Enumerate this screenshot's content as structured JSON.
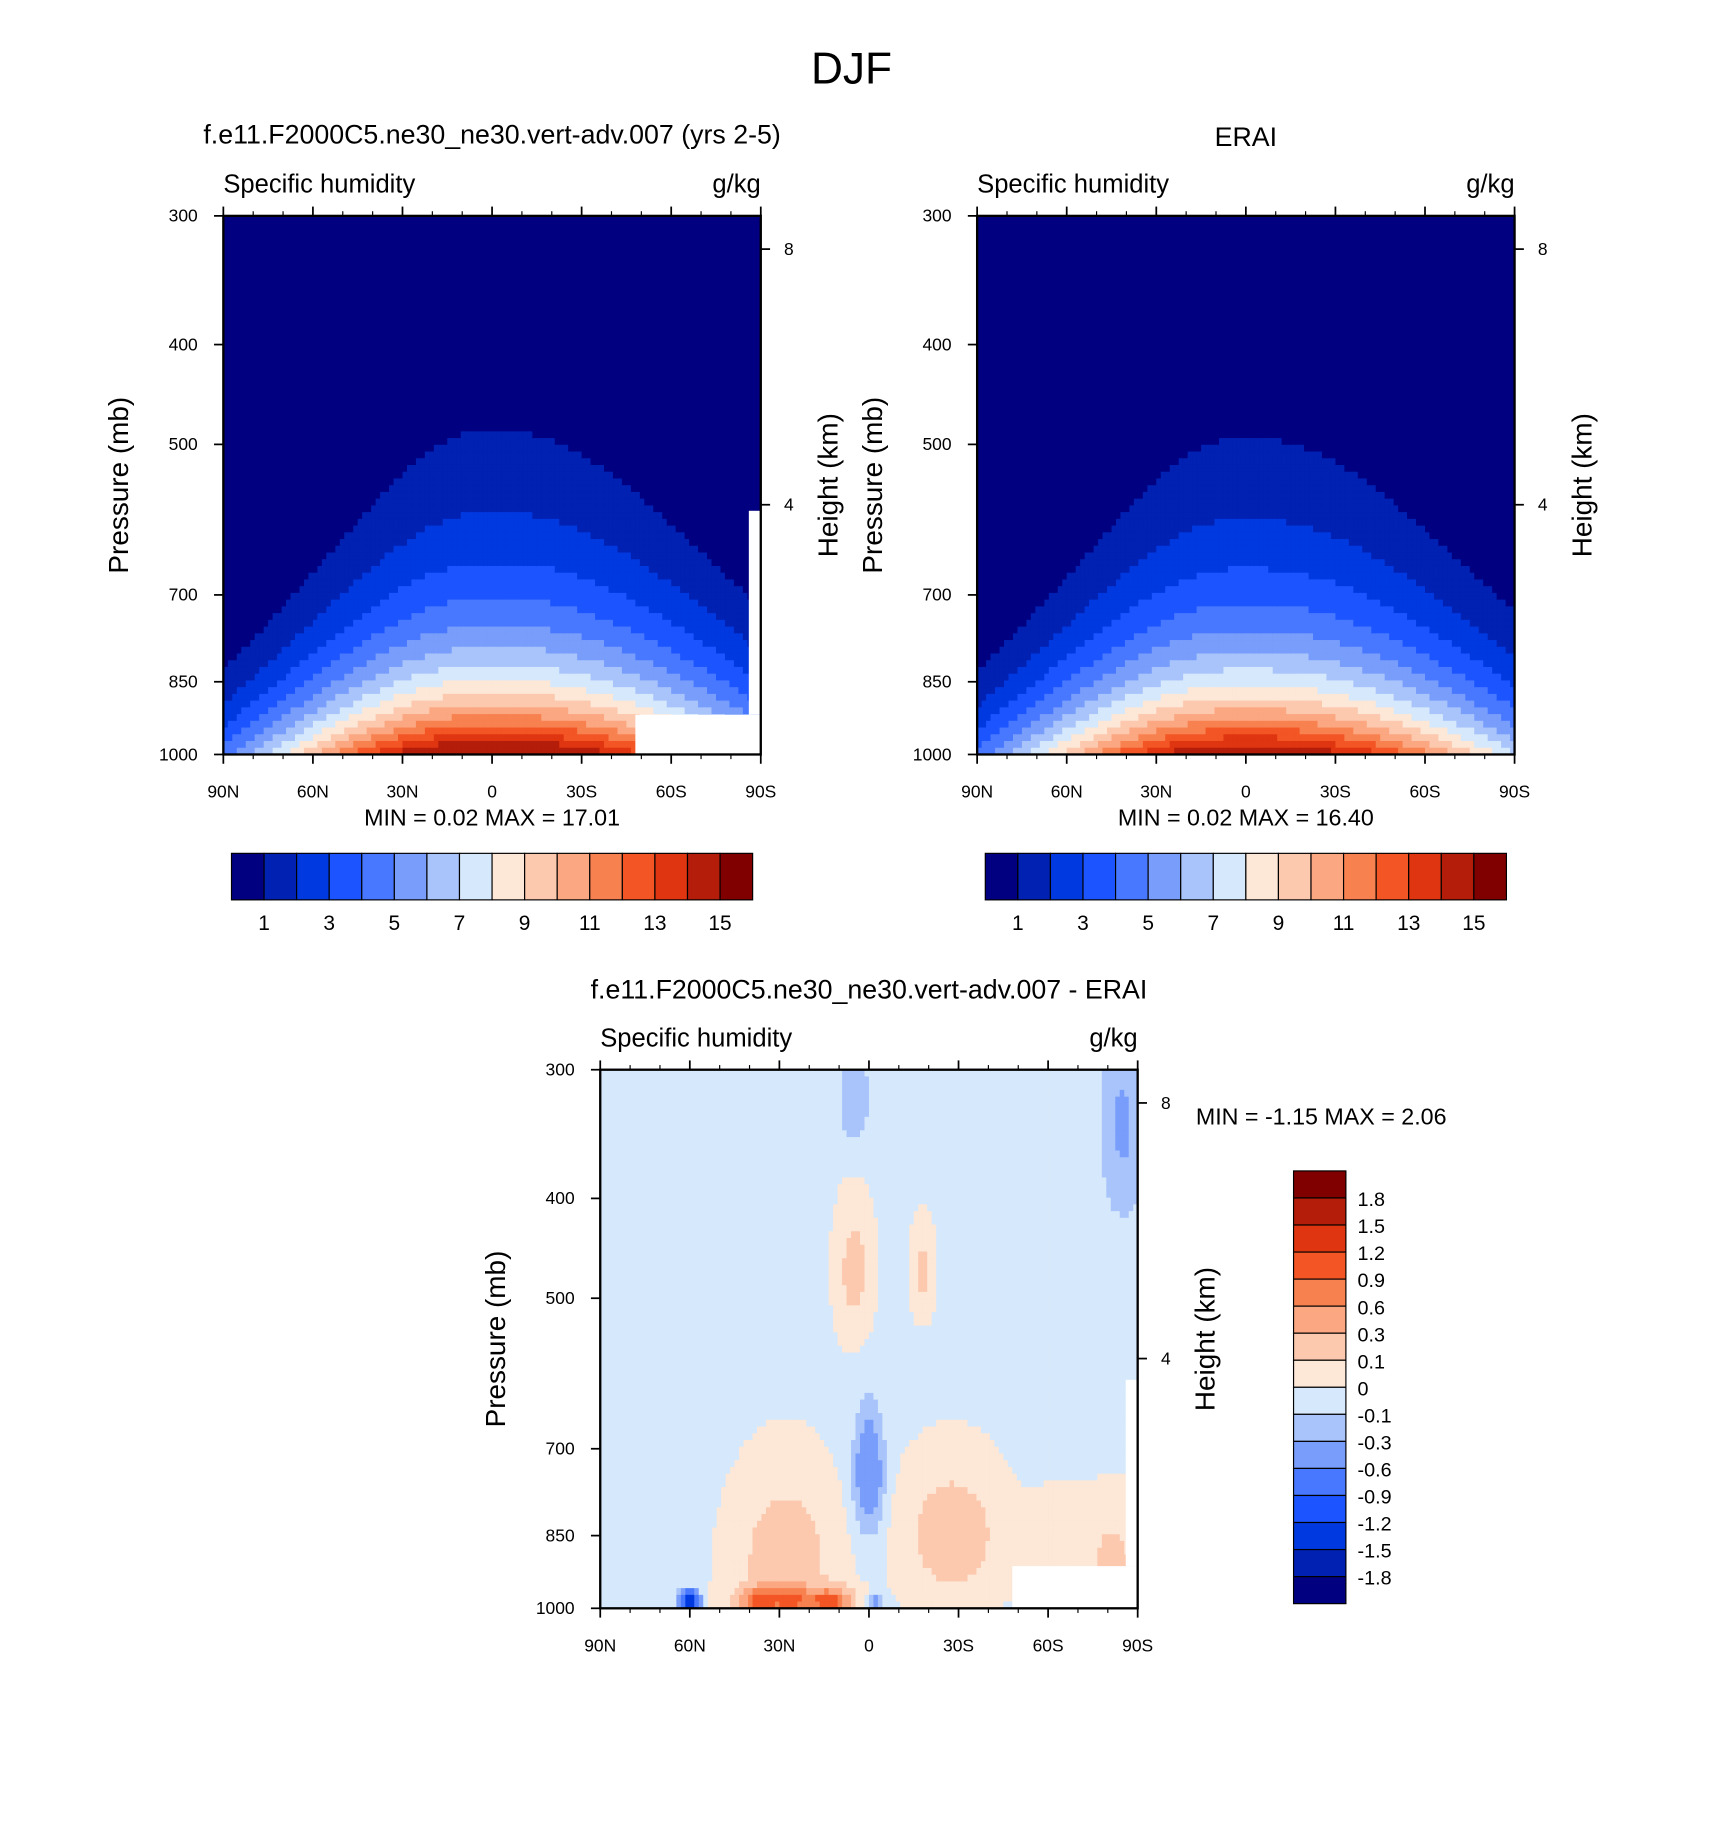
{
  "figure_title": "DJF",
  "palette": {
    "model_obs": [
      "#000080",
      "#0021b2",
      "#0039e0",
      "#1c55ff",
      "#4878ff",
      "#799dfb",
      "#a8c4fb",
      "#d6e8fb",
      "#fde7d6",
      "#fcc8ae",
      "#fba781",
      "#f88150",
      "#f35524",
      "#df3510",
      "#b41d0a",
      "#800000"
    ],
    "difference": [
      "#800000",
      "#b41d0a",
      "#df3510",
      "#f35524",
      "#f88150",
      "#fba781",
      "#fcc8ae",
      "#fde7d6",
      "#d6e8fb",
      "#a8c4fb",
      "#799dfb",
      "#4878ff",
      "#1c55ff",
      "#0039e0",
      "#0021b2",
      "#000080"
    ]
  },
  "chart_data": [
    {
      "type": "contour",
      "title": "f.e11.F2000C5.ne30_ne30.vert-adv.007 (yrs 2-5)",
      "variable": "Specific humidity",
      "units": "g/kg",
      "ylabel": "Pressure (mb)",
      "y2label": "Height (km)",
      "x_ticks": [
        "90N",
        "60N",
        "30N",
        "0",
        "30S",
        "60S",
        "90S"
      ],
      "y_ticks": [
        "300",
        "400",
        "500",
        "700",
        "850",
        "1000"
      ],
      "y2_ticks": [
        "8",
        "4"
      ],
      "xlim": [
        90,
        -90
      ],
      "ylim": [
        1000,
        300
      ],
      "min_label": "MIN =",
      "min_value": "0.02",
      "max_label": "MAX =",
      "max_value": "17.01",
      "colorbar_labels": [
        "1",
        "3",
        "5",
        "7",
        "9",
        "11",
        "13",
        "15"
      ],
      "contour_levels": [
        0,
        1,
        2,
        3,
        4,
        5,
        6,
        7,
        8,
        9,
        10,
        11,
        12,
        13,
        14,
        15
      ],
      "peak_value": 17.01,
      "peak_latitude": -5,
      "peak_pressure": 1000
    },
    {
      "type": "contour",
      "title": "ERAI",
      "variable": "Specific humidity",
      "units": "g/kg",
      "ylabel": "Pressure (mb)",
      "y2label": "Height (km)",
      "x_ticks": [
        "90N",
        "60N",
        "30N",
        "0",
        "30S",
        "60S",
        "90S"
      ],
      "y_ticks": [
        "300",
        "400",
        "500",
        "700",
        "850",
        "1000"
      ],
      "y2_ticks": [
        "8",
        "4"
      ],
      "xlim": [
        90,
        -90
      ],
      "ylim": [
        1000,
        300
      ],
      "min_label": "MIN =",
      "min_value": "0.02",
      "max_label": "MAX =",
      "max_value": "16.40",
      "colorbar_labels": [
        "1",
        "3",
        "5",
        "7",
        "9",
        "11",
        "13",
        "15"
      ],
      "contour_levels": [
        0,
        1,
        2,
        3,
        4,
        5,
        6,
        7,
        8,
        9,
        10,
        11,
        12,
        13,
        14,
        15
      ],
      "peak_value": 16.4,
      "peak_latitude": -5,
      "peak_pressure": 1000
    },
    {
      "type": "contour",
      "title": "f.e11.F2000C5.ne30_ne30.vert-adv.007 - ERAI",
      "variable": "Specific humidity",
      "units": "g/kg",
      "ylabel": "Pressure (mb)",
      "y2label": "Height (km)",
      "x_ticks": [
        "90N",
        "60N",
        "30N",
        "0",
        "30S",
        "60S",
        "90S"
      ],
      "y_ticks": [
        "300",
        "400",
        "500",
        "700",
        "850",
        "1000"
      ],
      "y2_ticks": [
        "8",
        "4"
      ],
      "xlim": [
        90,
        -90
      ],
      "ylim": [
        1000,
        300
      ],
      "min_label": "MIN =",
      "min_value": "-1.15",
      "max_label": "MAX =",
      "max_value": "2.06",
      "colorbar_labels": [
        "1.8",
        "1.5",
        "1.2",
        "0.9",
        "0.6",
        "0.3",
        "0.1",
        "0",
        "-0.1",
        "-0.3",
        "-0.6",
        "-0.9",
        "-1.2",
        "-1.5",
        "-1.8"
      ],
      "contour_levels": [
        -1.8,
        -1.5,
        -1.2,
        -0.9,
        -0.6,
        -0.3,
        -0.1,
        0,
        0.1,
        0.3,
        0.6,
        0.9,
        1.2,
        1.5,
        1.8
      ]
    }
  ]
}
